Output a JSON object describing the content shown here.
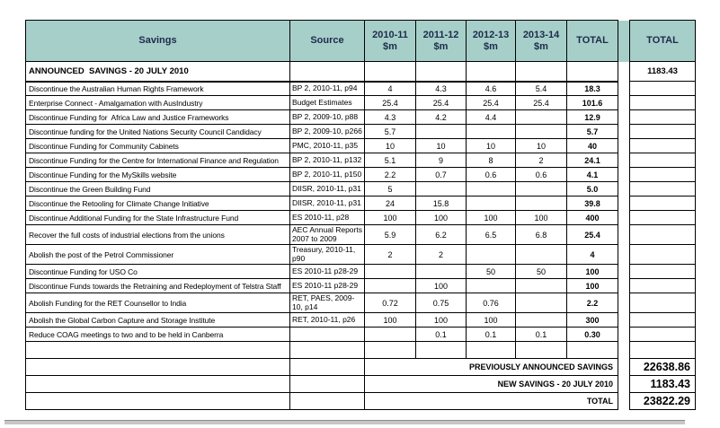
{
  "table": {
    "headers": {
      "savings": "Savings",
      "source": "Source",
      "years": [
        "2010-11",
        "2011-12",
        "2012-13",
        "2013-14"
      ],
      "unit": "$m",
      "total": "TOTAL",
      "grand_total": "TOTAL"
    },
    "section_row": {
      "label": "ANNOUNCED  SAVINGS - 20 JULY 2010",
      "grand_total": "1183.43"
    },
    "rows": [
      {
        "savings": "Discontinue the Australian Human Rights Framework",
        "source": "BP 2, 2010-11, p94",
        "values": [
          "4",
          "4.3",
          "4.6",
          "5.4"
        ],
        "total": "18.3",
        "tall": false
      },
      {
        "savings": "Enterprise Connect - Amalgamation with AusIndustry",
        "source": "Budget Estimates",
        "values": [
          "25.4",
          "25.4",
          "25.4",
          "25.4"
        ],
        "total": "101.6",
        "tall": false
      },
      {
        "savings": "Discontinue Funding for  Africa Law and Justice Frameworks",
        "source": "BP 2, 2009-10, p88",
        "values": [
          "4.3",
          "4.2",
          "4.4",
          ""
        ],
        "total": "12.9",
        "tall": false
      },
      {
        "savings": "Discontinue funding for the United Nations Security Council Candidacy",
        "source": "BP 2, 2009-10, p266",
        "values": [
          "5.7",
          "",
          "",
          ""
        ],
        "total": "5.7",
        "tall": false
      },
      {
        "savings": "Discontinue Funding for Community Cabinets",
        "source": "PMC, 2010-11, p35",
        "values": [
          "10",
          "10",
          "10",
          "10"
        ],
        "total": "40",
        "tall": false
      },
      {
        "savings": "Discontinue Funding for the Centre for International Finance and Regulation",
        "source": "BP 2, 2010-11, p132",
        "values": [
          "5.1",
          "9",
          "8",
          "2"
        ],
        "total": "24.1",
        "tall": false
      },
      {
        "savings": "Discontinue Funding for the MySkills website",
        "source": "BP 2, 2010-11, p150",
        "values": [
          "2.2",
          "0.7",
          "0.6",
          "0.6"
        ],
        "total": "4.1",
        "tall": false
      },
      {
        "savings": "Discontinue the Green Building Fund",
        "source": "DIISR, 2010-11, p31",
        "values": [
          "5",
          "",
          "",
          ""
        ],
        "total": "5.0",
        "tall": false
      },
      {
        "savings": "Discontinue the Retooling for Climate Change Initiative",
        "source": "DIISR, 2010-11, p31",
        "values": [
          "24",
          "15.8",
          "",
          ""
        ],
        "total": "39.8",
        "tall": false
      },
      {
        "savings": "Discontinue Additional Funding for the State Infrastructure Fund",
        "source": "ES 2010-11, p28",
        "values": [
          "100",
          "100",
          "100",
          "100"
        ],
        "total": "400",
        "tall": false
      },
      {
        "savings": "Recover the full costs of industrial elections from the unions",
        "source": "AEC Annual Reports 2007 to 2009",
        "values": [
          "5.9",
          "6.2",
          "6.5",
          "6.8"
        ],
        "total": "25.4",
        "tall": true
      },
      {
        "savings": "Abolish the post of the Petrol Commissioner",
        "source": "Treasury, 2010-11, p90",
        "values": [
          "2",
          "2",
          "",
          ""
        ],
        "total": "4",
        "tall": true
      },
      {
        "savings": "Discontinue Funding for USO Co",
        "source": "ES 2010-11 p28-29",
        "values": [
          "",
          "",
          "50",
          "50"
        ],
        "total": "100",
        "tall": false
      },
      {
        "savings": "Discontinue Funds towards the Retraining and Redeployment of Telstra Staff",
        "source": "ES 2010-11 p28-29",
        "values": [
          "",
          "100",
          "",
          ""
        ],
        "total": "100",
        "tall": false
      },
      {
        "savings": "Abolish Funding for the RET Counsellor to India",
        "source": "RET, PAES, 2009-10, p14",
        "values": [
          "0.72",
          "0.75",
          "0.76",
          ""
        ],
        "total": "2.2",
        "tall": true
      },
      {
        "savings": "Abolish the Global Carbon Capture and Storage Institute",
        "source": "RET, 2010-11, p26",
        "values": [
          "100",
          "100",
          "100",
          ""
        ],
        "total": "300",
        "tall": false
      },
      {
        "savings": "Reduce COAG meetings to two and to be held in Canberra",
        "source": "",
        "values": [
          "",
          "0.1",
          "0.1",
          "0.1"
        ],
        "total": "0.30",
        "tall": false
      },
      {
        "savings": "",
        "source": "",
        "values": [
          "",
          "",
          "",
          ""
        ],
        "total": "",
        "tall": false,
        "empty": true
      }
    ],
    "summary_rows": [
      {
        "label": "PREVIOUSLY ANNOUNCED SAVINGS",
        "value": "22638.86"
      },
      {
        "label": "NEW SAVINGS - 20 JULY 2010",
        "value": "1183.43"
      },
      {
        "label": "TOTAL",
        "value": "23822.29"
      }
    ]
  },
  "colors": {
    "header_bg": "#a7cfca",
    "header_text": "#1c2b4a",
    "border": "#000000",
    "bottom_bar": "#c6c6c6",
    "bottom_bar_edge": "#8b8b8b"
  }
}
